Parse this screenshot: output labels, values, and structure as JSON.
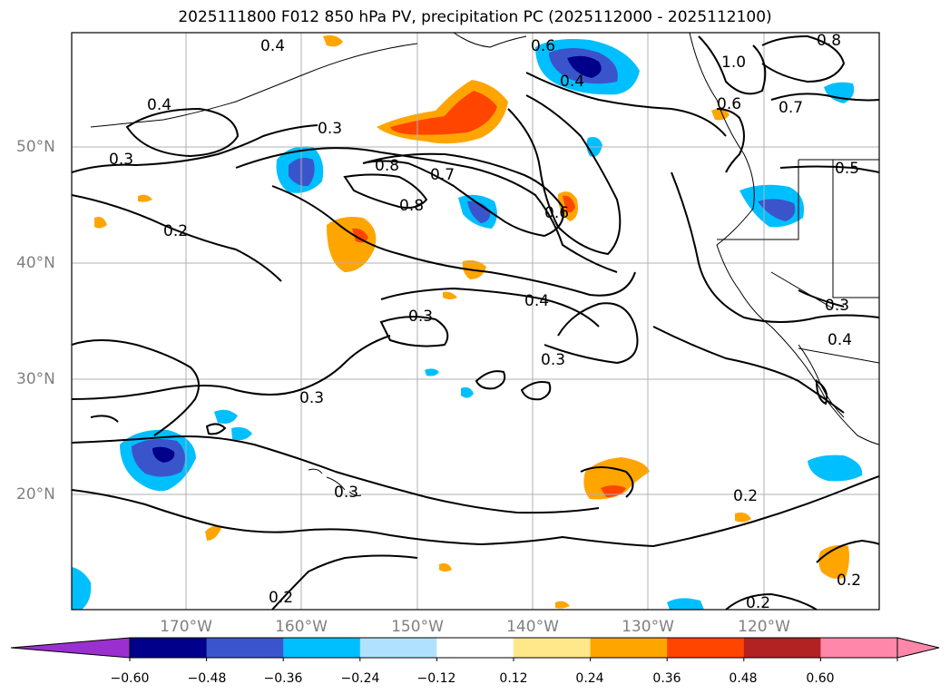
{
  "title": "2025111800 F012 850 hPa PV, precipitation PC (2025112000 - 2025112100)",
  "lat_labels": [
    "50°N",
    "40°N",
    "30°N",
    "20°N"
  ],
  "lon_labels": [
    "170°W",
    "160°W",
    "150°W",
    "140°W",
    "130°W",
    "120°W"
  ],
  "contour_labels": [
    "0.4",
    "0.4",
    "0.3",
    "0.3",
    "0.2",
    "0.7",
    "0.8",
    "0.8",
    "0.6",
    "0.4",
    "0.6",
    "1.0",
    "0.8",
    "0.7",
    "0.6",
    "0.5",
    "0.3",
    "0.4",
    "0.4",
    "0.3",
    "0.3",
    "0.3",
    "0.3",
    "0.2",
    "0.2",
    "0.2",
    "0.2"
  ],
  "colorbar": {
    "ticks": [
      "−0.60",
      "−0.48",
      "−0.36",
      "−0.24",
      "−0.12",
      "0.12",
      "0.24",
      "0.36",
      "0.48",
      "0.60"
    ],
    "colors": [
      "#9b30d0",
      "#00008b",
      "#3a55cc",
      "#00bfff",
      "#b0e2ff",
      "#ffffff",
      "#ffe88a",
      "#ffa500",
      "#ff4500",
      "#b22222",
      "#ff88aa",
      "#ff88aa"
    ]
  }
}
